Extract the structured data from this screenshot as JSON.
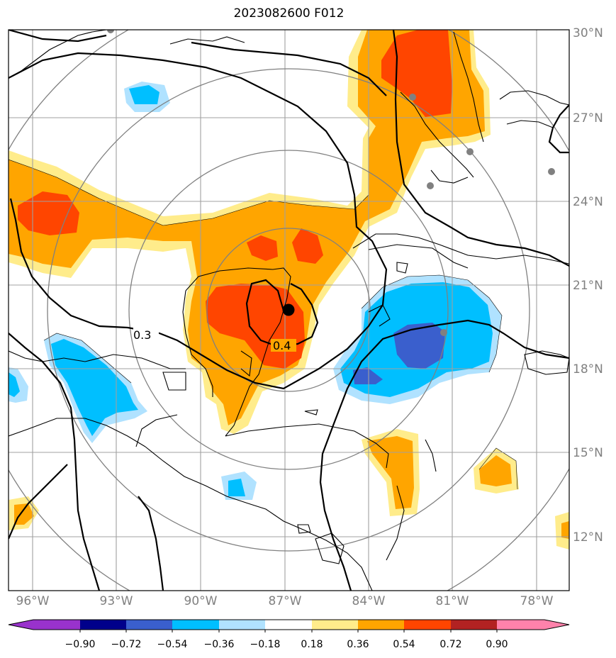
{
  "title": "2023082600 F012",
  "lat_labels": [
    "30°N",
    "27°N",
    "24°N",
    "21°N",
    "18°N",
    "15°N",
    "12°N"
  ],
  "lon_labels": [
    "96°W",
    "93°W",
    "90°W",
    "87°W",
    "84°W",
    "81°W",
    "78°W"
  ],
  "contour_labels": [
    "0.3",
    "0.4"
  ],
  "colorbar": {
    "ticks": [
      "−0.90",
      "−0.72",
      "−0.54",
      "−0.36",
      "−0.18",
      "0.18",
      "0.36",
      "0.54",
      "0.72",
      "0.90"
    ],
    "colors": [
      "#9932cc",
      "#00008b",
      "#3a5fcd",
      "#00bfff",
      "#b0e2ff",
      "#ffffff",
      "#ffec8b",
      "#ffa500",
      "#ff4500",
      "#b22222",
      "#ff82ab"
    ]
  },
  "storm_center_marker": "black-dot"
}
